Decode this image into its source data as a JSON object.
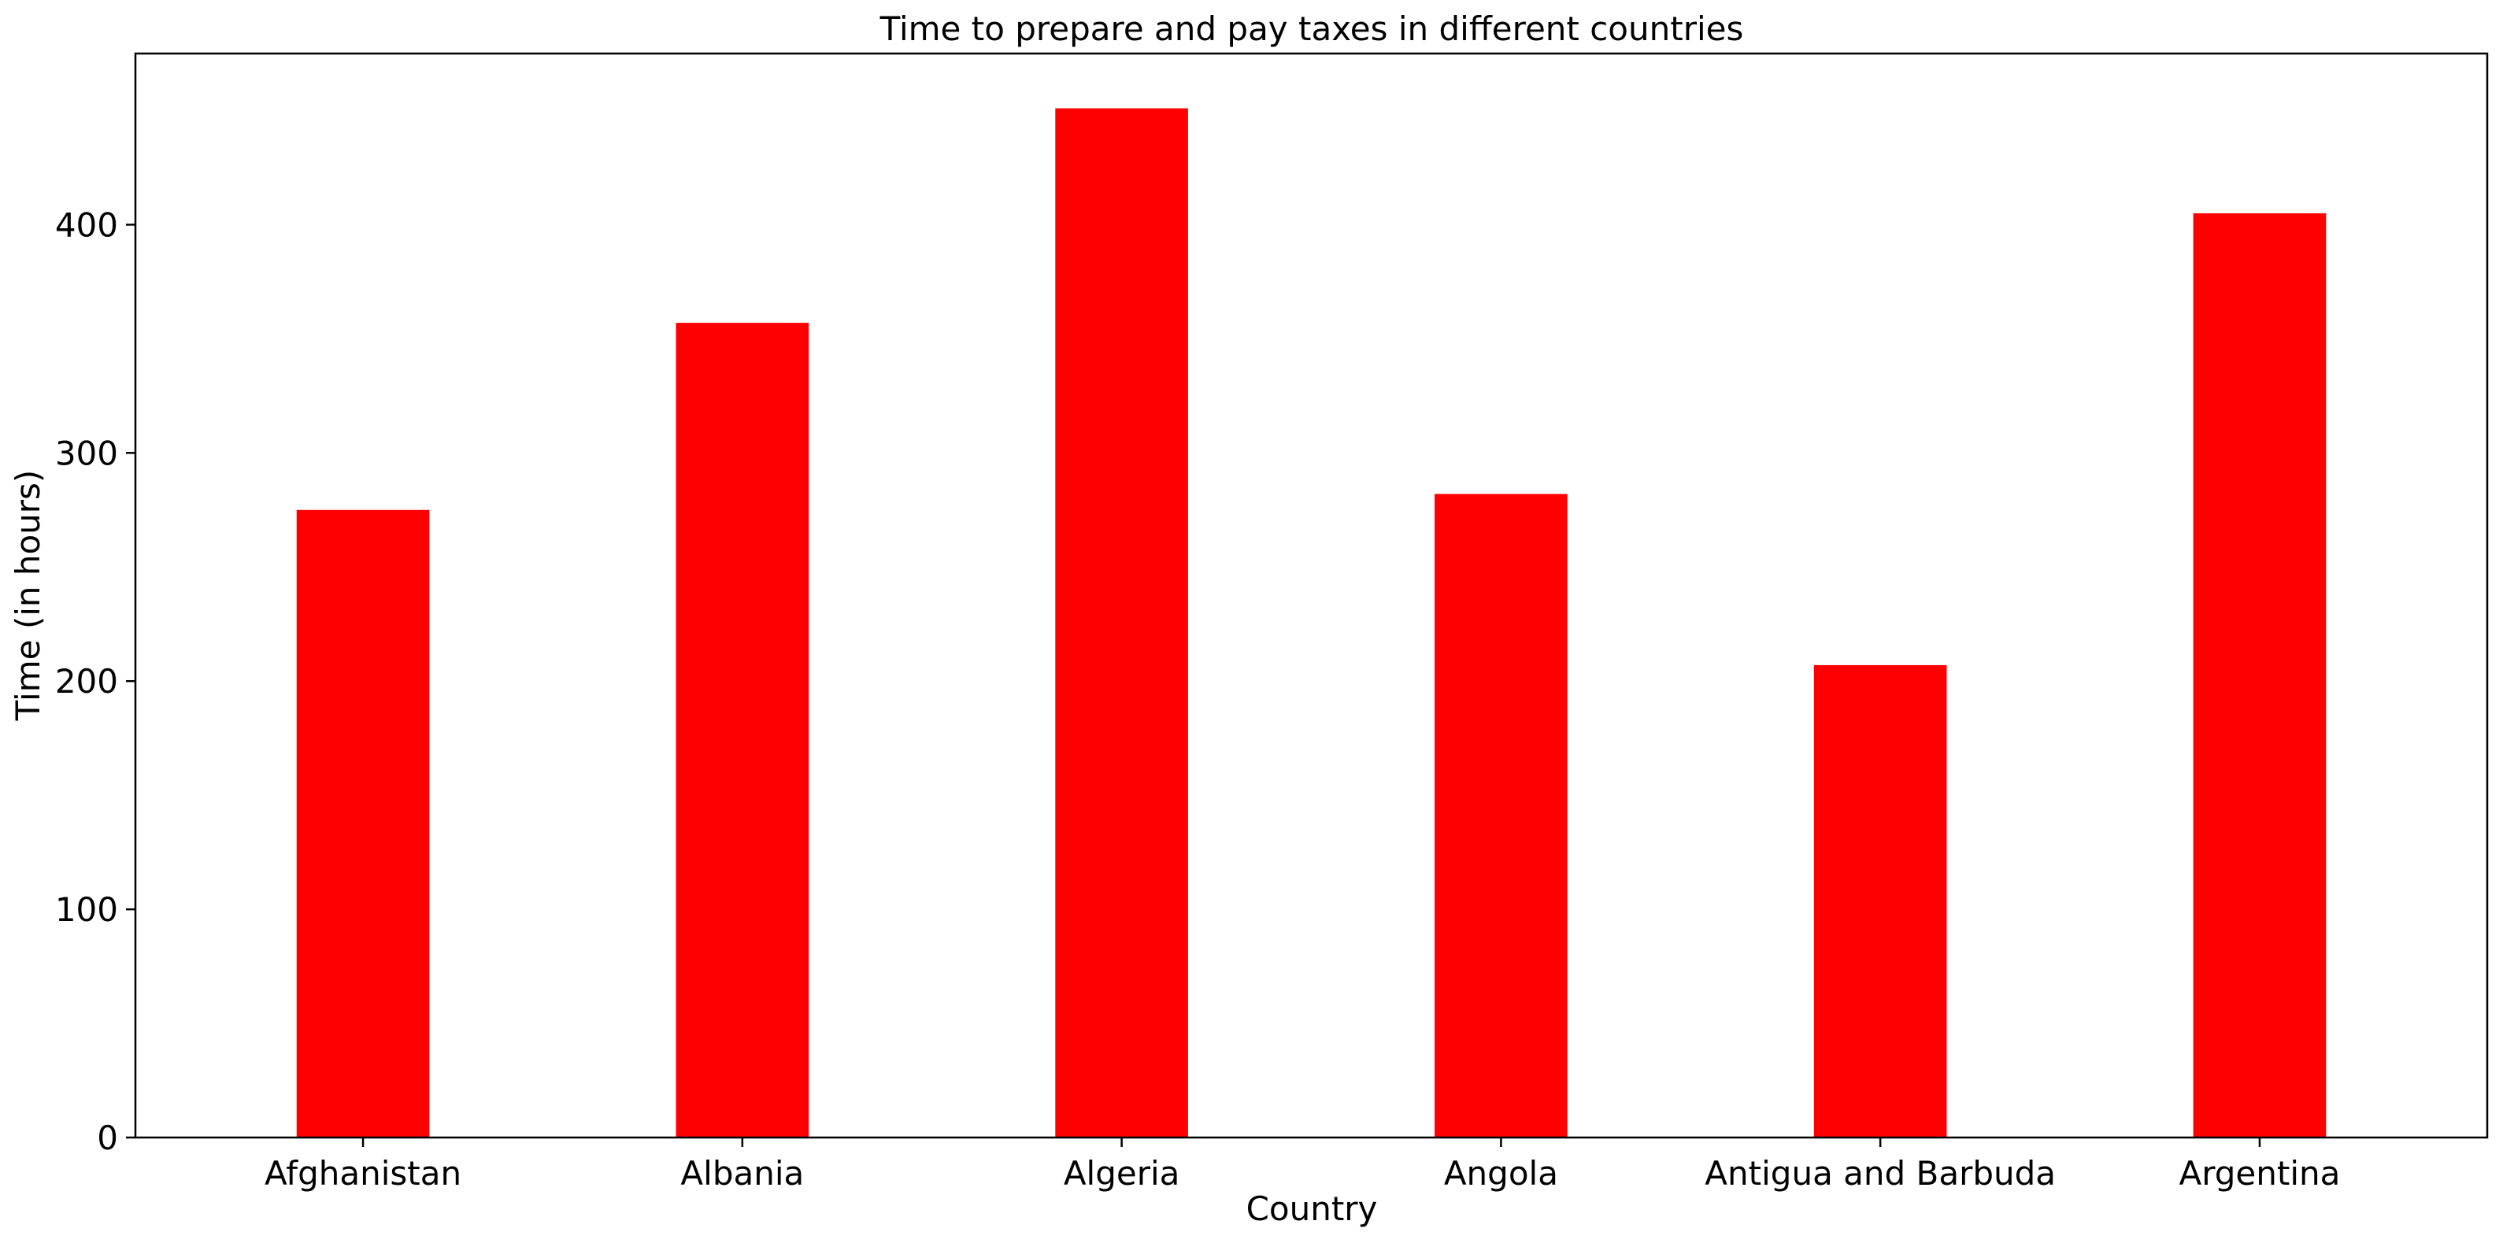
{
  "chart_data": {
    "type": "bar",
    "title": "Time to prepare and pay taxes in different countries",
    "xlabel": "Country",
    "ylabel": "Time (in hours)",
    "categories": [
      "Afghanistan",
      "Albania",
      "Algeria",
      "Angola",
      "Antigua and Barbuda",
      "Argentina"
    ],
    "values": [
      275,
      357,
      451,
      282,
      207,
      405
    ],
    "ylim": [
      0,
      475
    ],
    "yticks": [
      0,
      100,
      200,
      300,
      400
    ],
    "bar_color": "#ff0000",
    "grid": false,
    "legend": "none"
  }
}
